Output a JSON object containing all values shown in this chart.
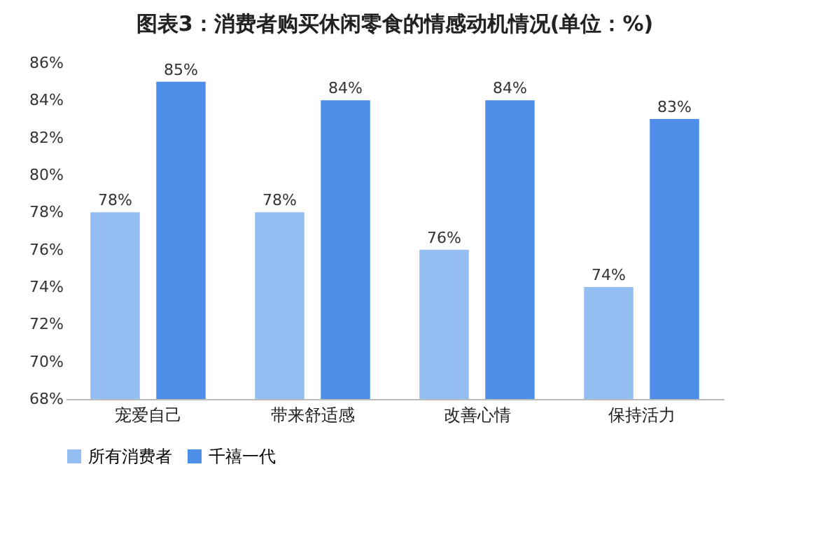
{
  "chart_data": {
    "type": "bar",
    "title": "图表3：消费者购买休闲零食的情感动机情况(单位：%)",
    "categories": [
      "宠爱自己",
      "带来舒适感",
      "改善心情",
      "保持活力"
    ],
    "series": [
      {
        "name": "所有消费者",
        "color": "#94bdf2",
        "values": [
          78,
          78,
          76,
          74
        ],
        "value_labels": [
          "78%",
          "78%",
          "76%",
          "74%"
        ]
      },
      {
        "name": "千禧一代",
        "color": "#4d8fe8",
        "values": [
          85,
          84,
          84,
          83
        ],
        "value_labels": [
          "85%",
          "84%",
          "84%",
          "83%"
        ]
      }
    ],
    "ylim": [
      68,
      86
    ],
    "yticks": [
      {
        "value": 68,
        "label": "68%"
      },
      {
        "value": 70,
        "label": "70%"
      },
      {
        "value": 72,
        "label": "72%"
      },
      {
        "value": 74,
        "label": "74%"
      },
      {
        "value": 76,
        "label": "76%"
      },
      {
        "value": 78,
        "label": "78%"
      },
      {
        "value": 80,
        "label": "80%"
      },
      {
        "value": 82,
        "label": "82%"
      },
      {
        "value": 84,
        "label": "84%"
      },
      {
        "value": 86,
        "label": "86%"
      }
    ],
    "legend": "bottom"
  }
}
